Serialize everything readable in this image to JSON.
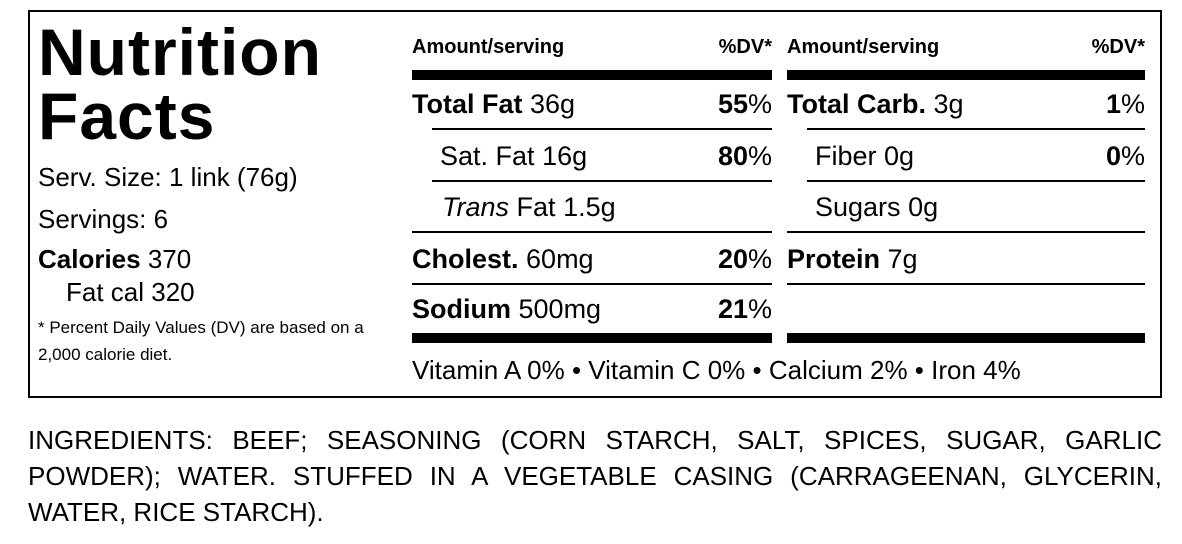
{
  "header": {
    "title": "Nutrition Facts"
  },
  "serving": {
    "size": "Serv. Size: 1 link (76g)",
    "servings": "Servings: 6"
  },
  "calories": {
    "label": "Calories",
    "value": "370",
    "fat_cal": "Fat cal 320"
  },
  "footnote": "* Percent Daily Values (DV) are based on a 2,000 calorie diet.",
  "columns": [
    {
      "header_amount": "Amount/serving",
      "header_dv": "%DV*",
      "rows": [
        {
          "label": "Total Fat",
          "amount": "36g",
          "dv": "55",
          "dv_unit": "%"
        },
        {
          "label": "Sat. Fat",
          "amount": "16g",
          "dv": "80",
          "dv_unit": "%"
        },
        {
          "label_italic": "Trans",
          "label": "Fat",
          "amount": "1.5g"
        },
        {
          "label": "Cholest.",
          "amount": "60mg",
          "dv": "20",
          "dv_unit": "%"
        },
        {
          "label": "Sodium",
          "amount": "500mg",
          "dv": "21",
          "dv_unit": "%"
        }
      ]
    },
    {
      "header_amount": "Amount/serving",
      "header_dv": "%DV*",
      "rows": [
        {
          "label": "Total Carb.",
          "amount": "3g",
          "dv": "1",
          "dv_unit": "%"
        },
        {
          "label": "Fiber",
          "amount": "0g",
          "dv": "0",
          "dv_unit": "%"
        },
        {
          "label": "Sugars",
          "amount": "0g"
        },
        {
          "label": "Protein",
          "amount": "7g"
        }
      ]
    }
  ],
  "vitamins": "Vitamin A 0% • Vitamin C 0% • Calcium 2% • Iron 4%",
  "ingredients": "INGREDIENTS: BEEF; SEASONING (CORN STARCH, SALT, SPICES, SUGAR, GARLIC POWDER); WATER. STUFFED IN A VEGETABLE CASING (CARRAGEENAN, GLYCERIN, WATER, RICE STARCH)."
}
